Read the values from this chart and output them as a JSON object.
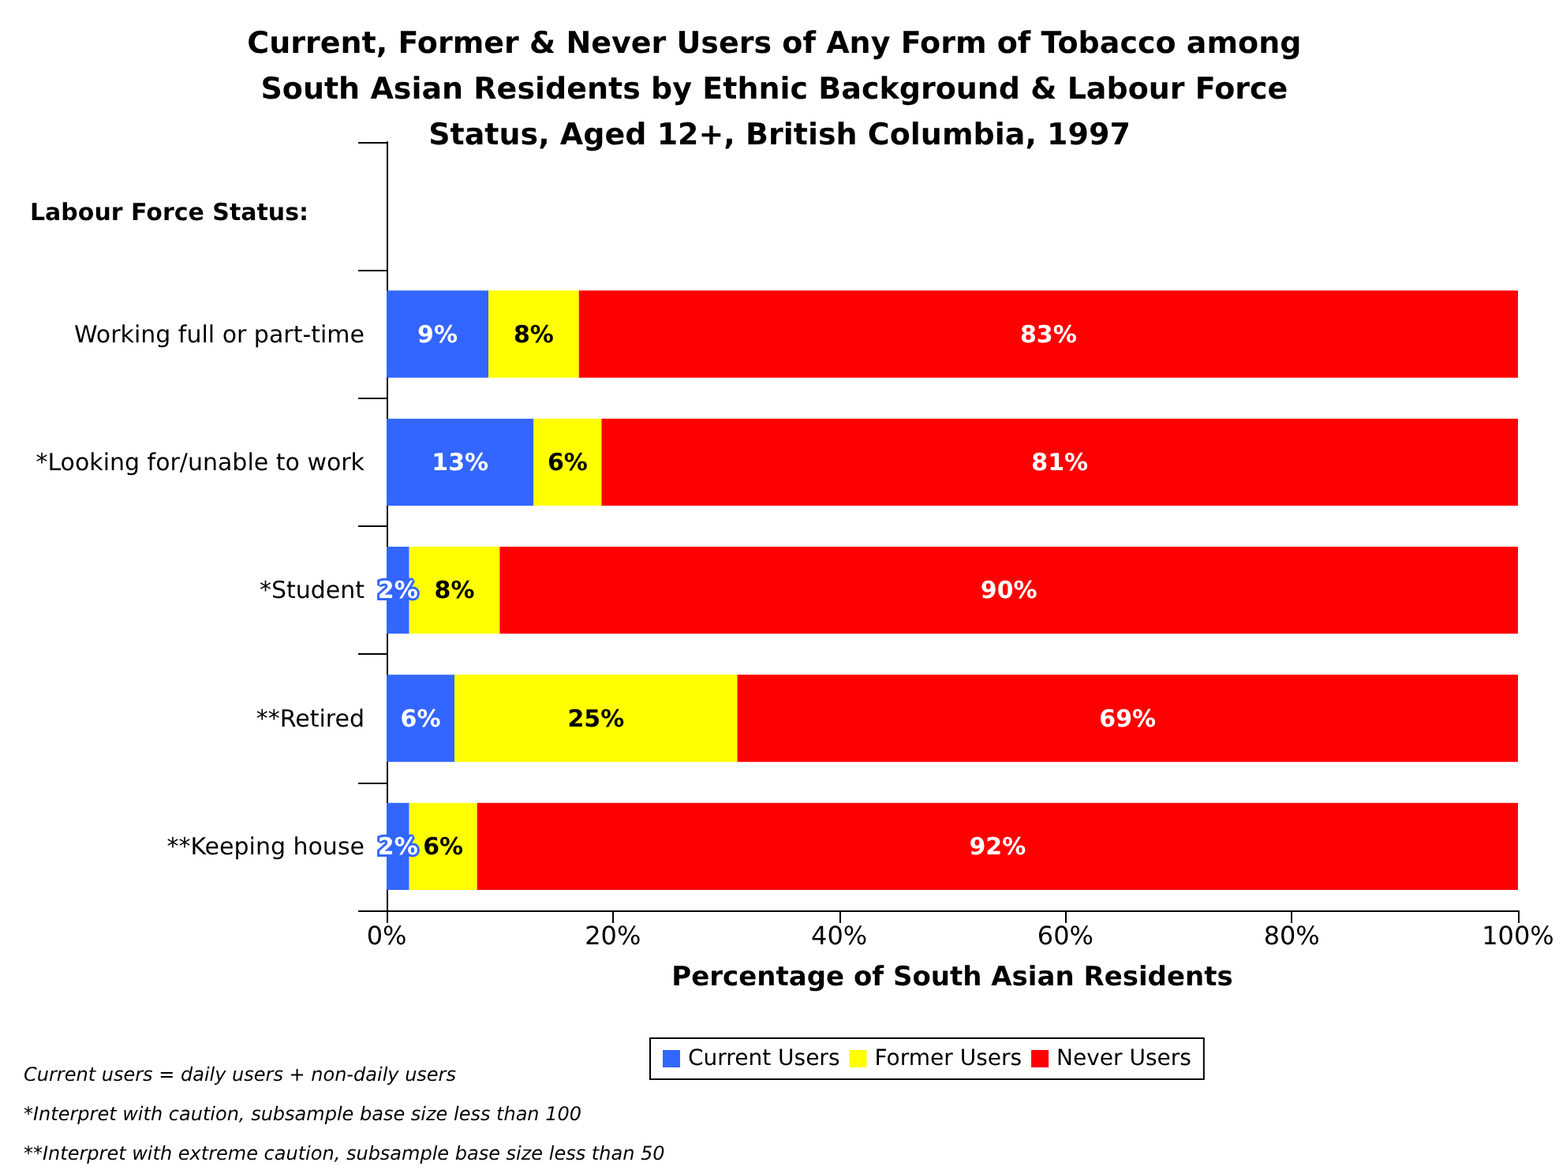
{
  "chart_data": {
    "type": "bar",
    "orientation": "horizontal",
    "stacked": true,
    "title": "Current, Former & Never Users of Any Form of Tobacco among South Asian Residents by Ethnic Background & Labour Force Status, Aged 12+, British Columbia, 1997",
    "xlabel": "Percentage of South Asian Residents",
    "ylabel": "Labour Force Status:",
    "categories": [
      null,
      "Working full or part-time",
      "*Looking for/unable to work",
      "*Student",
      "**Retired",
      "**Keeping house"
    ],
    "series": [
      {
        "name": "Current Users",
        "color": "#3366ff",
        "values": [
          null,
          9,
          13,
          2,
          6,
          2
        ],
        "value_labels": [
          null,
          "9%",
          "13%",
          "2%",
          "6%",
          "2%"
        ]
      },
      {
        "name": "Former Users",
        "color": "#ffff00",
        "values": [
          null,
          8,
          6,
          8,
          25,
          6
        ],
        "value_labels": [
          null,
          "8%",
          "6%",
          "8%",
          "25%",
          "6%"
        ]
      },
      {
        "name": "Never Users",
        "color": "#ff0000",
        "values": [
          null,
          83,
          81,
          90,
          69,
          92
        ],
        "value_labels": [
          null,
          "83%",
          "81%",
          "90%",
          "69%",
          "92%"
        ]
      }
    ],
    "xlim": [
      0,
      100
    ],
    "xticks": [
      {
        "value": 0,
        "label": "0%"
      },
      {
        "value": 20,
        "label": "20%"
      },
      {
        "value": 40,
        "label": "40%"
      },
      {
        "value": 60,
        "label": "60%"
      },
      {
        "value": 80,
        "label": "80%"
      },
      {
        "value": 100,
        "label": "100%"
      }
    ],
    "legend": "bottom",
    "annotations": [
      "Current users = daily users + non-daily users",
      "*Interpret with caution, subsample base size less than 100",
      "**Interpret with extreme caution, subsample base size less than 50"
    ]
  }
}
